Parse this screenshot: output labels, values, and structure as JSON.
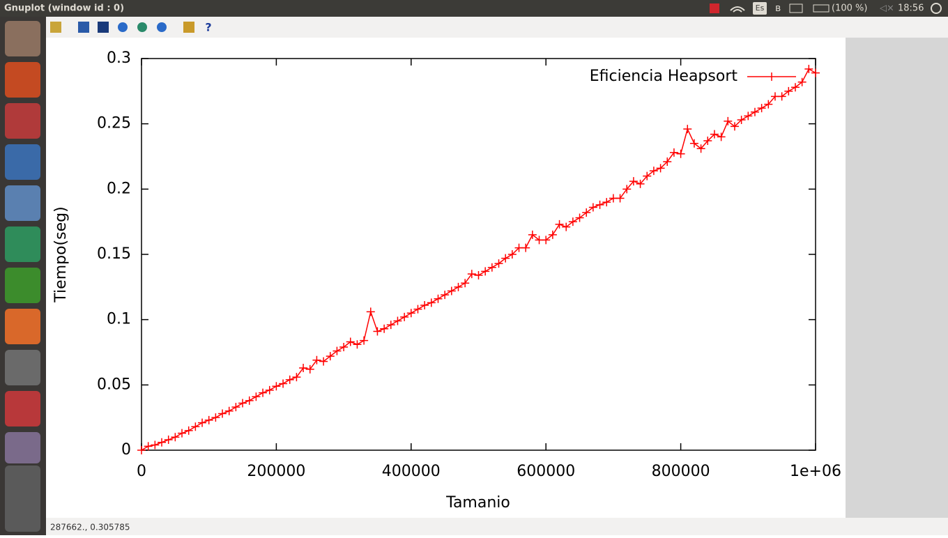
{
  "window_title": "Gnuplot (window id : 0)",
  "top_bar": {
    "keyboard": "Es",
    "battery": "(100 %)",
    "clock": "18:56"
  },
  "status_bar": "287662., 0.305785",
  "chart_data": {
    "type": "line",
    "xlabel": "Tamanio",
    "ylabel": "Tiempo(seg)",
    "xlim": [
      0,
      1000000
    ],
    "ylim": [
      0,
      0.3
    ],
    "xticks": [
      0,
      200000,
      400000,
      600000,
      {
        "value": 1000000,
        "label": "1e+06"
      },
      800000
    ],
    "yticks": [
      0,
      0.05,
      0.1,
      0.15,
      0.2,
      0.25,
      0.3
    ],
    "legend": "top-right",
    "x": [
      0,
      10000,
      20000,
      30000,
      40000,
      50000,
      60000,
      70000,
      80000,
      90000,
      100000,
      110000,
      120000,
      130000,
      140000,
      150000,
      160000,
      170000,
      180000,
      190000,
      200000,
      210000,
      220000,
      230000,
      240000,
      250000,
      260000,
      270000,
      280000,
      290000,
      300000,
      310000,
      320000,
      330000,
      340000,
      350000,
      360000,
      370000,
      380000,
      390000,
      400000,
      410000,
      420000,
      430000,
      440000,
      450000,
      460000,
      470000,
      480000,
      490000,
      500000,
      510000,
      520000,
      530000,
      540000,
      550000,
      560000,
      570000,
      580000,
      590000,
      600000,
      610000,
      620000,
      630000,
      640000,
      650000,
      660000,
      670000,
      680000,
      690000,
      700000,
      710000,
      720000,
      730000,
      740000,
      750000,
      760000,
      770000,
      780000,
      790000,
      800000,
      810000,
      820000,
      830000,
      840000,
      850000,
      860000,
      870000,
      880000,
      890000,
      900000,
      910000,
      920000,
      930000,
      940000,
      950000,
      960000,
      970000,
      980000,
      990000,
      1000000
    ],
    "series": [
      {
        "name": "Eficiencia Heapsort",
        "color": "#ff0000",
        "values": [
          0,
          0.003,
          0.004,
          0.006,
          0.008,
          0.01,
          0.013,
          0.015,
          0.018,
          0.021,
          0.023,
          0.025,
          0.028,
          0.03,
          0.033,
          0.036,
          0.038,
          0.041,
          0.044,
          0.046,
          0.049,
          0.051,
          0.054,
          0.056,
          0.063,
          0.062,
          0.069,
          0.068,
          0.072,
          0.076,
          0.079,
          0.083,
          0.081,
          0.084,
          0.106,
          0.091,
          0.093,
          0.096,
          0.099,
          0.102,
          0.105,
          0.108,
          0.111,
          0.113,
          0.116,
          0.119,
          0.122,
          0.125,
          0.128,
          0.135,
          0.134,
          0.137,
          0.14,
          0.143,
          0.147,
          0.15,
          0.155,
          0.155,
          0.165,
          0.161,
          0.161,
          0.165,
          0.173,
          0.171,
          0.175,
          0.178,
          0.182,
          0.186,
          0.188,
          0.19,
          0.193,
          0.193,
          0.2,
          0.206,
          0.204,
          0.21,
          0.214,
          0.216,
          0.221,
          0.228,
          0.227,
          0.246,
          0.235,
          0.231,
          0.237,
          0.242,
          0.24,
          0.252,
          0.248,
          0.253,
          0.256,
          0.259,
          0.262,
          0.265,
          0.271,
          0.271,
          0.275,
          0.278,
          0.282,
          0.292,
          0.289
        ]
      }
    ]
  }
}
